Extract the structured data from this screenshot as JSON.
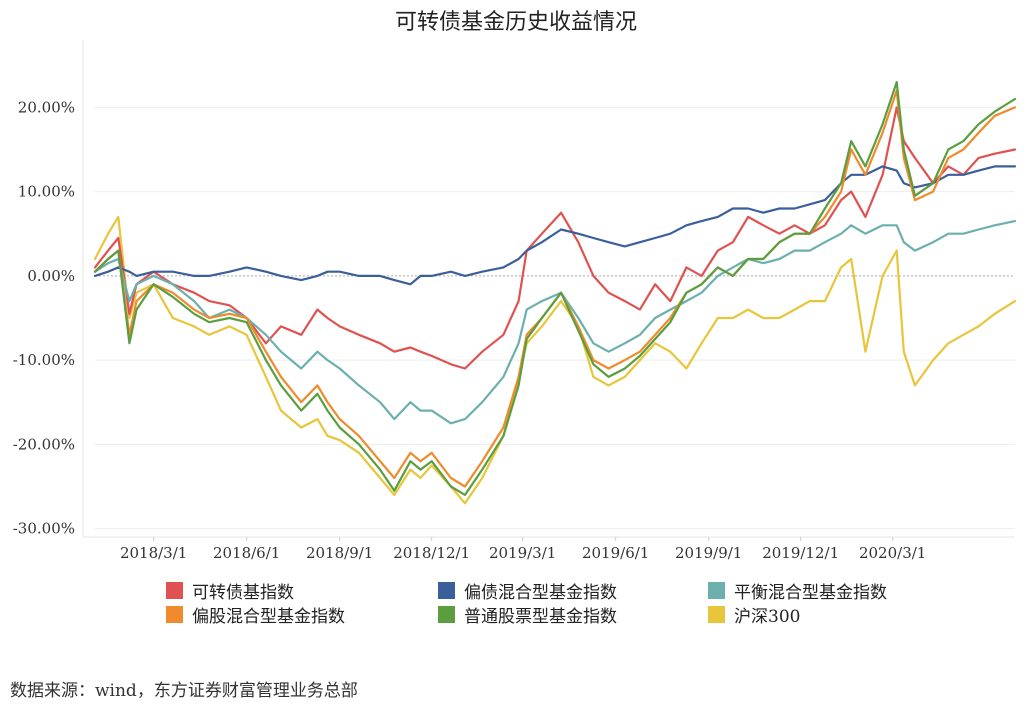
{
  "title": "可转债基金历史收益情况",
  "source": "数据来源：wind，东方证券财富管理业务总部",
  "chart_data": {
    "type": "line",
    "title": "可转债基金历史收益情况",
    "ylim": [
      -31,
      28
    ],
    "y_ticks": [
      20,
      10,
      0,
      -10,
      -20,
      -30
    ],
    "y_tick_labels": [
      "20.00%",
      "10.00%",
      "0.00%",
      "-10.00%",
      "-20.00%",
      "-30.00%"
    ],
    "x_tick_labels": [
      "2018/3/1",
      "2018/6/1",
      "2018/9/1",
      "2018/12/1",
      "2019/3/1",
      "2019/6/1",
      "2019/9/1",
      "2019/12/1",
      "2020/3/1"
    ],
    "x_tick_dates": [
      "2018-03-01",
      "2018-06-01",
      "2018-09-01",
      "2018-12-01",
      "2019-03-01",
      "2019-06-01",
      "2019-09-01",
      "2019-12-01",
      "2020-03-01"
    ],
    "x_range": [
      "2018-01-02",
      "2020-06-30"
    ],
    "zero_line": true,
    "dates": [
      "2018-01-02",
      "2018-01-15",
      "2018-01-25",
      "2018-02-05",
      "2018-02-12",
      "2018-03-01",
      "2018-03-20",
      "2018-04-10",
      "2018-04-25",
      "2018-05-15",
      "2018-06-01",
      "2018-06-20",
      "2018-07-05",
      "2018-07-25",
      "2018-08-10",
      "2018-08-20",
      "2018-09-01",
      "2018-09-20",
      "2018-10-11",
      "2018-10-25",
      "2018-11-10",
      "2018-11-20",
      "2018-12-01",
      "2018-12-20",
      "2019-01-03",
      "2019-01-20",
      "2019-02-10",
      "2019-02-25",
      "2019-03-05",
      "2019-03-20",
      "2019-04-08",
      "2019-04-25",
      "2019-05-10",
      "2019-05-25",
      "2019-06-10",
      "2019-06-25",
      "2019-07-10",
      "2019-07-25",
      "2019-08-10",
      "2019-08-25",
      "2019-09-10",
      "2019-09-25",
      "2019-10-10",
      "2019-10-25",
      "2019-11-10",
      "2019-11-25",
      "2019-12-10",
      "2019-12-25",
      "2020-01-10",
      "2020-01-20",
      "2020-02-03",
      "2020-02-20",
      "2020-03-05",
      "2020-03-12",
      "2020-03-23",
      "2020-04-10",
      "2020-04-25",
      "2020-05-10",
      "2020-05-25",
      "2020-06-10",
      "2020-06-30"
    ],
    "series": [
      {
        "name": "可转债基指数",
        "color": "#e05252",
        "values": [
          1,
          3,
          4.5,
          -4.5,
          -1,
          0.5,
          -1,
          -2,
          -3,
          -3.5,
          -5,
          -8,
          -6,
          -7,
          -4,
          -5,
          -6,
          -7,
          -8,
          -9,
          -8.5,
          -9,
          -9.5,
          -10.5,
          -11,
          -9,
          -7,
          -3,
          3,
          5,
          7.5,
          4,
          0,
          -2,
          -3,
          -4,
          -1,
          -3,
          1,
          0,
          3,
          4,
          7,
          6,
          5,
          6,
          5,
          6,
          9,
          10,
          7,
          12,
          20,
          16,
          14,
          11,
          13,
          12,
          14,
          14.5,
          15
        ]
      },
      {
        "name": "偏债混合型基金指数",
        "color": "#3a5f9a",
        "values": [
          0,
          0.5,
          1,
          0.5,
          0,
          0.5,
          0.5,
          0,
          0,
          0.5,
          1,
          0.5,
          0,
          -0.5,
          0,
          0.5,
          0.5,
          0,
          0,
          -0.5,
          -1,
          0,
          0,
          0.5,
          0,
          0.5,
          1,
          2,
          3,
          4,
          5.5,
          5,
          4.5,
          4,
          3.5,
          4,
          4.5,
          5,
          6,
          6.5,
          7,
          8,
          8,
          7.5,
          8,
          8,
          8.5,
          9,
          11,
          12,
          12,
          13,
          12.5,
          11,
          10.5,
          11,
          12,
          12,
          12.5,
          13,
          13
        ]
      },
      {
        "name": "平衡混合型基金指数",
        "color": "#6bb0ad",
        "values": [
          0.5,
          1.5,
          2,
          -3,
          -1,
          0,
          -1,
          -3,
          -5,
          -4,
          -5,
          -7,
          -9,
          -11,
          -9,
          -10,
          -11,
          -13,
          -15,
          -17,
          -15,
          -16,
          -16,
          -17.5,
          -17,
          -15,
          -12,
          -8,
          -4,
          -3,
          -2,
          -5,
          -8,
          -9,
          -8,
          -7,
          -5,
          -4,
          -3,
          -2,
          0,
          1,
          2,
          1.5,
          2,
          3,
          3,
          4,
          5,
          6,
          5,
          6,
          6,
          4,
          3,
          4,
          5,
          5,
          5.5,
          6,
          6.5
        ]
      },
      {
        "name": "偏股混合型基金指数",
        "color": "#f08a2c",
        "values": [
          0.5,
          2,
          3,
          -7,
          -3,
          -1,
          -2,
          -4,
          -5,
          -4.5,
          -5,
          -9,
          -12,
          -15,
          -13,
          -15,
          -17,
          -19,
          -22,
          -24,
          -21,
          -22,
          -21,
          -24,
          -25,
          -22,
          -18,
          -12,
          -7,
          -5,
          -2,
          -6,
          -10,
          -11,
          -10,
          -9,
          -7,
          -5,
          -2,
          -1,
          1,
          0,
          2,
          2,
          4,
          5,
          5,
          7,
          10,
          15,
          12,
          17,
          22,
          14,
          9,
          10,
          14,
          15,
          17,
          19,
          20
        ]
      },
      {
        "name": "普通股票型基金指数",
        "color": "#5a9e3f",
        "values": [
          0.5,
          2,
          3,
          -8,
          -4,
          -1,
          -2.5,
          -4.5,
          -5.5,
          -5,
          -5.5,
          -10,
          -13,
          -16,
          -14,
          -16,
          -18,
          -20,
          -23,
          -25.5,
          -22,
          -23,
          -22,
          -25,
          -26,
          -23,
          -19,
          -13,
          -7.5,
          -5,
          -2,
          -6.5,
          -10.5,
          -12,
          -11,
          -9.5,
          -7.5,
          -5.5,
          -2,
          -1,
          1,
          0,
          2,
          2,
          4,
          5,
          5,
          8,
          11,
          16,
          13,
          18,
          23,
          15,
          9.5,
          11,
          15,
          16,
          18,
          19.5,
          21
        ]
      },
      {
        "name": "沪深300",
        "color": "#e8c53a",
        "values": [
          2,
          5,
          7,
          -5,
          -2,
          -1,
          -5,
          -6,
          -7,
          -6,
          -7,
          -12,
          -16,
          -18,
          -17,
          -19,
          -19.5,
          -21,
          -24,
          -26,
          -23,
          -24,
          -22.5,
          -25,
          -27,
          -24,
          -19,
          -12,
          -8,
          -6,
          -3,
          -6,
          -12,
          -13,
          -12,
          -10,
          -8,
          -9,
          -11,
          -8,
          -5,
          -5,
          -4,
          -5,
          -5,
          -4,
          -3,
          -3,
          1,
          2,
          -9,
          0,
          3,
          -9,
          -13,
          -10,
          -8,
          -7,
          -6,
          -4.5,
          -3
        ]
      }
    ]
  },
  "legend": [
    {
      "label": "可转债基指数",
      "color": "#e05252"
    },
    {
      "label": "偏债混合型基金指数",
      "color": "#3a5f9a"
    },
    {
      "label": "平衡混合型基金指数",
      "color": "#6bb0ad"
    },
    {
      "label": "偏股混合型基金指数",
      "color": "#f08a2c"
    },
    {
      "label": "普通股票型基金指数",
      "color": "#5a9e3f"
    },
    {
      "label": "沪深300",
      "color": "#e8c53a"
    }
  ]
}
